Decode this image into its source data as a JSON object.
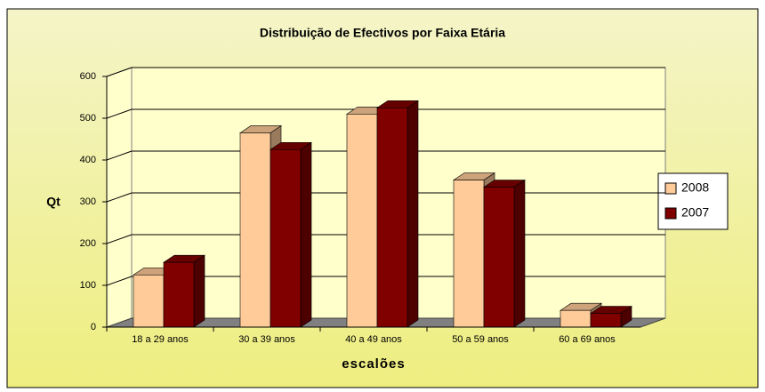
{
  "chart_data": {
    "type": "bar3d",
    "title": "Distribuição de Efectivos por Faixa Etária",
    "x_label": "escalões",
    "y_label": "Qt",
    "categories": [
      "18 a 29 anos",
      "30 a 39 anos",
      "40 a 49 anos",
      "50 a 59 anos",
      "60 a 69 anos"
    ],
    "series": [
      {
        "name": "2008",
        "color": "#ffcc99",
        "values": [
          125,
          465,
          510,
          352,
          40
        ]
      },
      {
        "name": "2007",
        "color": "#800000",
        "values": [
          155,
          425,
          525,
          335,
          33
        ]
      }
    ],
    "ylim": [
      0,
      600
    ],
    "yticks": [
      0,
      100,
      200,
      300,
      400,
      500,
      600
    ],
    "grid": true,
    "legend": "right"
  }
}
